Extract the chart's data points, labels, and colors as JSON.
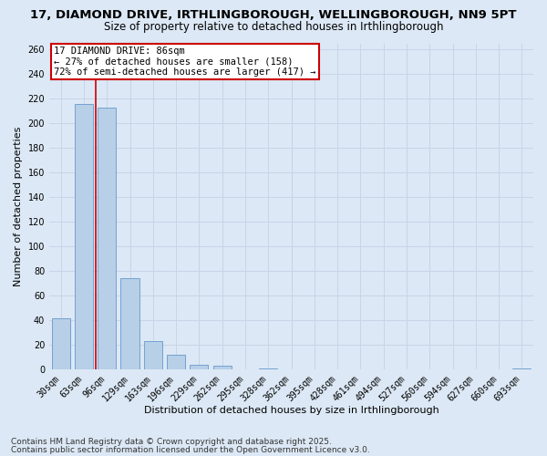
{
  "title1": "17, DIAMOND DRIVE, IRTHLINGBOROUGH, WELLINGBOROUGH, NN9 5PT",
  "title2": "Size of property relative to detached houses in Irthlingborough",
  "xlabel": "Distribution of detached houses by size in Irthlingborough",
  "ylabel": "Number of detached properties",
  "footnote1": "Contains HM Land Registry data © Crown copyright and database right 2025.",
  "footnote2": "Contains public sector information licensed under the Open Government Licence v3.0.",
  "bin_labels": [
    "30sqm",
    "63sqm",
    "96sqm",
    "129sqm",
    "163sqm",
    "196sqm",
    "229sqm",
    "262sqm",
    "295sqm",
    "328sqm",
    "362sqm",
    "395sqm",
    "428sqm",
    "461sqm",
    "494sqm",
    "527sqm",
    "560sqm",
    "594sqm",
    "627sqm",
    "660sqm",
    "693sqm"
  ],
  "bar_values": [
    42,
    216,
    213,
    74,
    23,
    12,
    4,
    3,
    0,
    1,
    0,
    0,
    0,
    0,
    0,
    0,
    0,
    0,
    0,
    0,
    1
  ],
  "bar_width": 0.8,
  "bar_color": "#b8cfe8",
  "bar_edge_color": "#6699cc",
  "property_line_x": 1.5,
  "annotation_title": "17 DIAMOND DRIVE: 86sqm",
  "annotation_line1": "← 27% of detached houses are smaller (158)",
  "annotation_line2": "72% of semi-detached houses are larger (417) →",
  "annotation_box_color": "#ffffff",
  "annotation_border_color": "#cc0000",
  "vline_color": "#cc0000",
  "ylim": [
    0,
    265
  ],
  "yticks": [
    0,
    20,
    40,
    60,
    80,
    100,
    120,
    140,
    160,
    180,
    200,
    220,
    240,
    260
  ],
  "grid_color": "#c8d4e8",
  "bg_color": "#dce8f5",
  "title1_fontsize": 9.5,
  "title2_fontsize": 8.5,
  "xlabel_fontsize": 8,
  "ylabel_fontsize": 8,
  "tick_fontsize": 7,
  "annotation_fontsize": 7.5,
  "footnote_fontsize": 6.5
}
